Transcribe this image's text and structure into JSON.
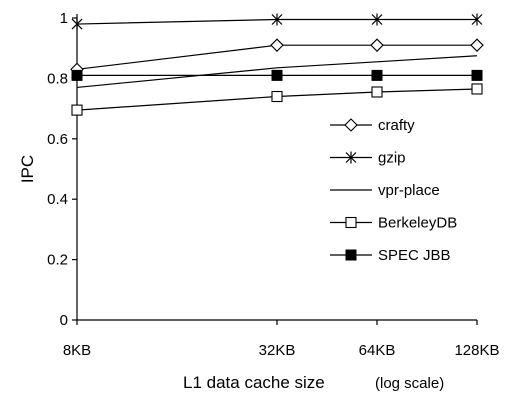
{
  "chart_data": {
    "type": "line",
    "xlabel": "L1 data cache size",
    "xlabel_note": "(log scale)",
    "ylabel": "IPC",
    "x_scale": "log",
    "categories": [
      "8KB",
      "32KB",
      "64KB",
      "128KB"
    ],
    "x": [
      8,
      32,
      64,
      128
    ],
    "ylim": [
      0,
      1
    ],
    "yticks": [
      "0",
      "0.2",
      "0.4",
      "0.6",
      "0.8",
      "1"
    ],
    "ytick_values": [
      0,
      0.2,
      0.4,
      0.6,
      0.8,
      1
    ],
    "grid": false,
    "legend_position": "right",
    "series": [
      {
        "name": "crafty",
        "marker": "open-diamond",
        "values": [
          0.83,
          0.91,
          0.91,
          0.91
        ]
      },
      {
        "name": "gzip",
        "marker": "asterisk",
        "values": [
          0.98,
          0.995,
          0.995,
          0.995
        ]
      },
      {
        "name": "vpr-place",
        "marker": "none",
        "values": [
          0.77,
          0.835,
          0.855,
          0.875
        ]
      },
      {
        "name": "BerkeleyDB",
        "marker": "open-square",
        "values": [
          0.695,
          0.74,
          0.755,
          0.765
        ]
      },
      {
        "name": "SPEC JBB",
        "marker": "filled-square",
        "values": [
          0.81,
          0.81,
          0.81,
          0.81
        ]
      }
    ]
  }
}
